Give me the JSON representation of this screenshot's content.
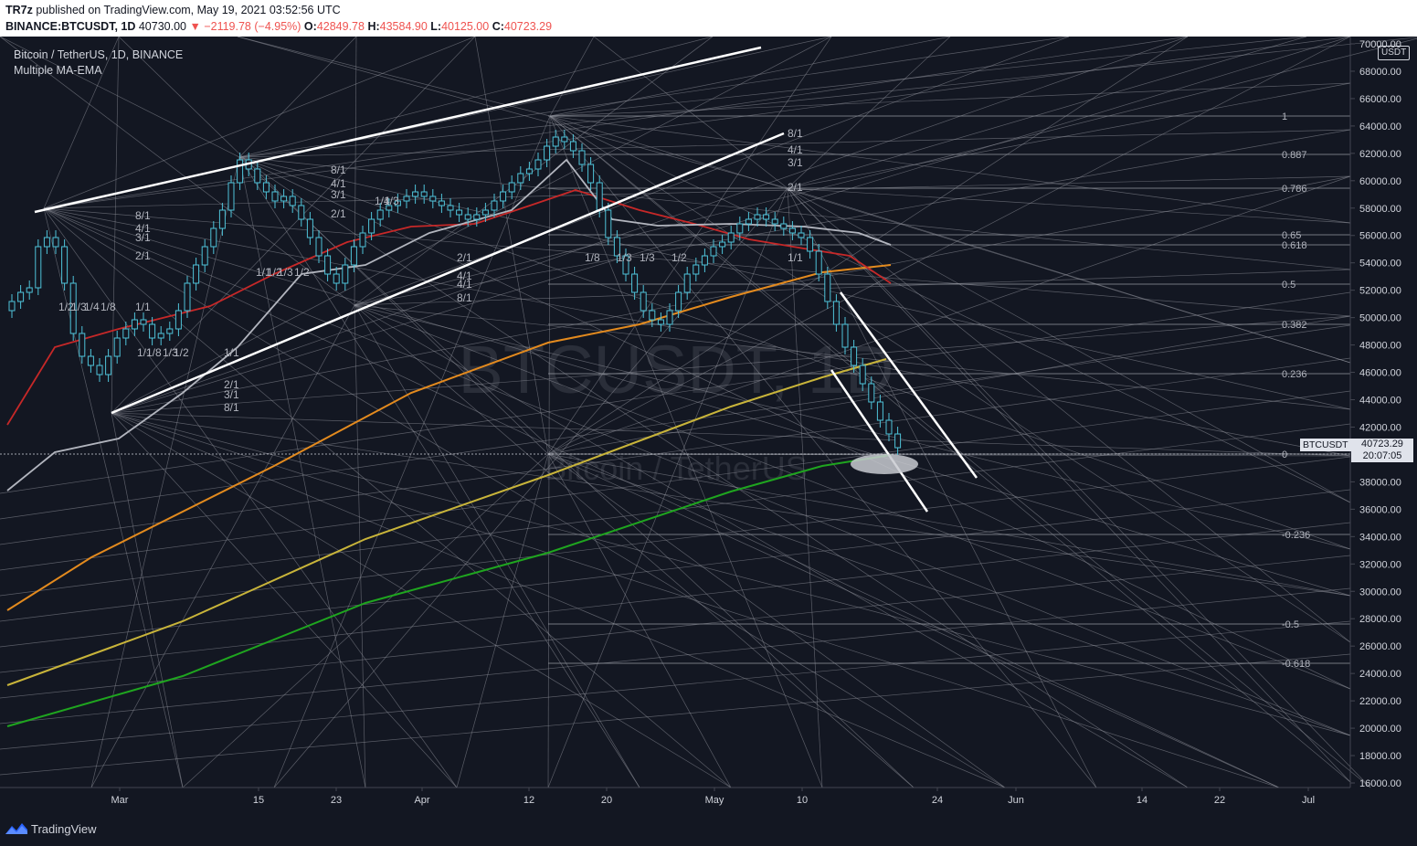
{
  "header": {
    "user": "TR7z",
    "published_text": "published on TradingView.com, May 19, 2021 03:52:56 UTC",
    "symbol_line": "BINANCE:BTCUSDT, 1D",
    "last": "40730.00",
    "change": "▼ −2119.78 (−4.95%)",
    "o_label": "O:",
    "o_value": "42849.78",
    "h_label": "H:",
    "h_value": "43584.90",
    "l_label": "L:",
    "l_value": "40125.00",
    "c_label": "C:",
    "c_value": "40723.29"
  },
  "legend": {
    "title": "Bitcoin / TetherUS, 1D, BINANCE",
    "indicator": "Multiple MA-EMA"
  },
  "watermark": {
    "symbol": "BTCUSDT, 1D",
    "name": "Bitcoin / TetherUS"
  },
  "price_axis": {
    "currency": "USDT",
    "labels": [
      "70000.00",
      "68000.00",
      "66000.00",
      "64000.00",
      "62000.00",
      "60000.00",
      "58000.00",
      "56000.00",
      "54000.00",
      "52000.00",
      "50000.00",
      "48000.00",
      "46000.00",
      "44000.00",
      "42000.00",
      "38000.00",
      "36000.00",
      "34000.00",
      "32000.00",
      "30000.00",
      "28000.00",
      "26000.00",
      "24000.00",
      "22000.00",
      "20000.00",
      "18000.00",
      "16000.00"
    ],
    "current_symbol": "BTCUSDT",
    "current_price": "40723.29",
    "countdown": "20:07:05"
  },
  "time_axis": {
    "labels": [
      "Mar",
      "15",
      "23",
      "Apr",
      "12",
      "20",
      "May",
      "10",
      "24",
      "Jun",
      "14",
      "22",
      "Jul"
    ]
  },
  "fib_labels": [
    "1",
    "0.887",
    "0.786",
    "0.65",
    "0.618",
    "0.5",
    "0.382",
    "0.236",
    "0",
    "-0.236",
    "-0.5",
    "-0.618"
  ],
  "gann_labels": [
    "8/1",
    "4/1",
    "3/1",
    "2/1",
    "1/1",
    "1/2",
    "1/3",
    "1/4",
    "1/8"
  ],
  "colors": {
    "background": "#131722",
    "up_candle": "#4fc3d9",
    "ma_red": "#c62828",
    "ma_grey": "#b2b5be",
    "ma_orange": "#e38a1e",
    "ma_yellow": "#c8b43a",
    "ma_green": "#1fa51f"
  },
  "footer": {
    "brand": "TradingView"
  }
}
